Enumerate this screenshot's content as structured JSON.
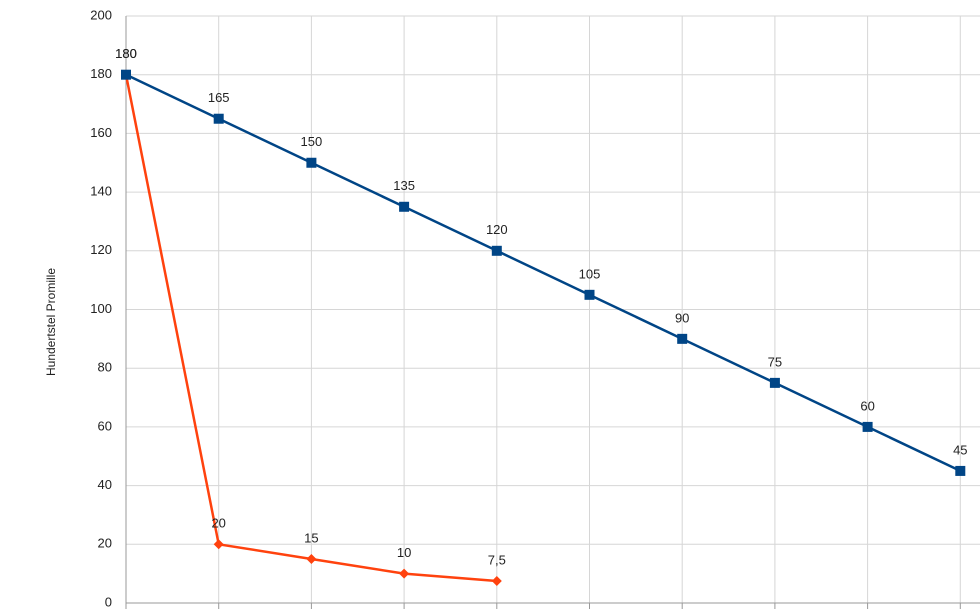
{
  "chart_data": {
    "type": "line",
    "y_label": "Hundertstel Promille",
    "categories": [
      null,
      null,
      null,
      null,
      null,
      null,
      null,
      null,
      null,
      null
    ],
    "series": [
      {
        "color": "#004586",
        "marker": "square",
        "values": [
          180,
          165,
          150,
          135,
          120,
          105,
          90,
          75,
          60,
          45
        ]
      },
      {
        "color": "#ff420e",
        "marker": "diamond",
        "values": [
          180,
          20,
          15,
          10,
          7.5,
          null,
          null,
          null,
          null,
          null
        ],
        "value_labels": [
          "180",
          "20",
          "15",
          "10",
          "7,5",
          null,
          null,
          null,
          null,
          null
        ]
      }
    ],
    "ylim": [
      0,
      200
    ],
    "yticks": [
      0,
      20,
      40,
      60,
      80,
      100,
      120,
      140,
      160,
      180,
      200
    ],
    "grid": true
  }
}
